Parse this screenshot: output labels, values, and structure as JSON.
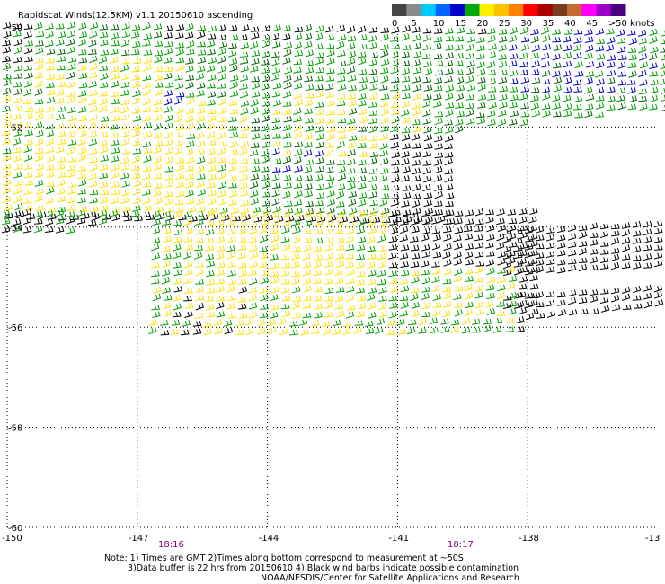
{
  "title": "Rapidscat Winds(12.5KM) v1.1 20150610 ascending",
  "legend": {
    "colors": [
      "#444444",
      "#8a8a8a",
      "#00c8ff",
      "#0064ff",
      "#0000c8",
      "#00aa00",
      "#ffee00",
      "#ffc000",
      "#ff8000",
      "#ff0000",
      "#aa0000",
      "#7a3c1e",
      "#c46c30",
      "#ff00ff",
      "#9a00c8",
      "#4b0082"
    ],
    "labels": [
      "0",
      "5",
      "10",
      "15",
      "20",
      "25",
      "30",
      "35",
      "40",
      "45",
      ">50 knots"
    ]
  },
  "axes": {
    "x_ticks": [
      "-150",
      "-147",
      "-144",
      "-141",
      "-138",
      "-13"
    ],
    "y_ticks": [
      "-50",
      "-52",
      "-54",
      "-56",
      "-58",
      "-60"
    ],
    "x_range": [
      -150,
      -135
    ],
    "y_range": [
      -60,
      -50
    ]
  },
  "times": [
    "18:16",
    "18:17"
  ],
  "notes": {
    "line1": "Note: 1) Times are GMT 2)Times along bottom correspond to measurement at ~50S",
    "line2": "3)Data buffer is 22 hrs from 20150610 4) Black wind barbs indicate possible contamination",
    "line3": "NOAA/NESDIS/Center for Satellite Applications and Research"
  },
  "colors": {
    "barb_black": "#000000",
    "barb_green": "#00a000",
    "barb_darkgreen": "#006400",
    "barb_yellow": "#ffe000",
    "barb_blue": "#0000c8",
    "time_label": "#800080"
  }
}
